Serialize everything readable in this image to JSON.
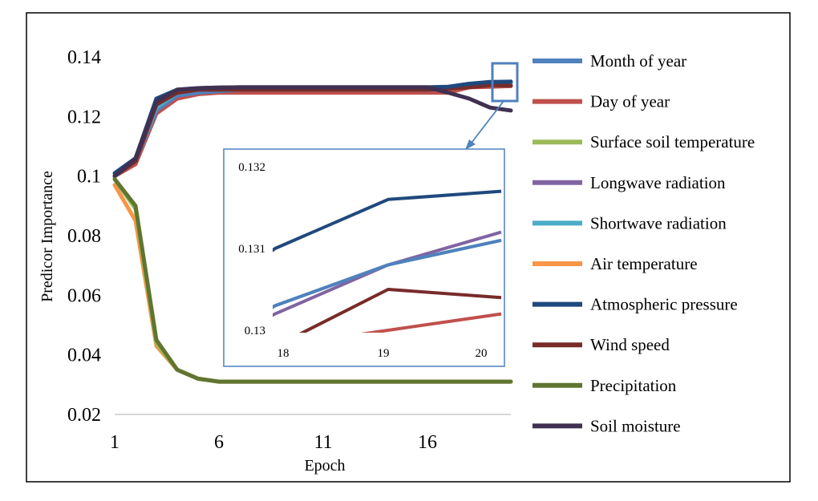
{
  "chart_data": {
    "type": "line",
    "xlabel": "Epoch",
    "ylabel": "Predicor Importance",
    "xlim": [
      1,
      20
    ],
    "ylim": [
      0.02,
      0.14
    ],
    "x_ticks": [
      1,
      6,
      11,
      16
    ],
    "y_ticks": [
      0.02,
      0.04,
      0.06,
      0.08,
      0.1,
      0.12,
      0.14
    ],
    "y_tick_labels": [
      "0.02",
      "0.04",
      "0.06",
      "0.08",
      "0.1",
      "0.12",
      "0.14"
    ],
    "grid": false,
    "legend_position": "right",
    "x": [
      1,
      2,
      3,
      4,
      5,
      6,
      7,
      8,
      9,
      10,
      11,
      12,
      13,
      14,
      15,
      16,
      17,
      18,
      19,
      20
    ],
    "series": [
      {
        "name": "Month of year",
        "color": "#4F81BD",
        "values": [
          0.1,
          0.105,
          0.122,
          0.127,
          0.128,
          0.1285,
          0.129,
          0.129,
          0.129,
          0.129,
          0.129,
          0.129,
          0.129,
          0.129,
          0.129,
          0.129,
          0.1295,
          0.1303,
          0.1308,
          0.1311
        ]
      },
      {
        "name": "Day of year",
        "color": "#C0504D",
        "values": [
          0.1,
          0.104,
          0.121,
          0.126,
          0.1275,
          0.128,
          0.128,
          0.128,
          0.128,
          0.128,
          0.128,
          0.128,
          0.128,
          0.128,
          0.128,
          0.128,
          0.128,
          0.1298,
          0.13,
          0.1302
        ]
      },
      {
        "name": "Surface soil temperature",
        "color": "#9BBB59",
        "values": [
          0.099,
          0.089,
          0.044,
          0.035,
          0.032,
          0.031,
          0.031,
          0.031,
          0.031,
          0.031,
          0.031,
          0.031,
          0.031,
          0.031,
          0.031,
          0.031,
          0.031,
          0.031,
          0.031,
          0.031
        ]
      },
      {
        "name": "Longwave radiation",
        "color": "#8064A2",
        "values": [
          0.1,
          0.105,
          0.123,
          0.128,
          0.129,
          0.129,
          0.129,
          0.129,
          0.129,
          0.129,
          0.129,
          0.129,
          0.129,
          0.129,
          0.129,
          0.129,
          0.1295,
          0.1302,
          0.1308,
          0.1312
        ]
      },
      {
        "name": "Shortwave radiation",
        "color": "#4BACC6",
        "values": [
          0.1,
          0.105,
          0.123,
          0.128,
          0.129,
          0.129,
          0.129,
          0.129,
          0.129,
          0.129,
          0.129,
          0.129,
          0.129,
          0.129,
          0.129,
          0.129,
          0.1295,
          0.1303,
          0.1308,
          0.1311
        ]
      },
      {
        "name": "Air temperature",
        "color": "#F79646",
        "values": [
          0.097,
          0.085,
          0.043,
          0.035,
          0.032,
          0.031,
          0.031,
          0.031,
          0.031,
          0.031,
          0.031,
          0.031,
          0.031,
          0.031,
          0.031,
          0.031,
          0.031,
          0.031,
          0.031,
          0.031
        ]
      },
      {
        "name": "Atmospheric pressure",
        "color": "#1F497D",
        "values": [
          0.101,
          0.106,
          0.126,
          0.129,
          0.1295,
          0.1297,
          0.1298,
          0.1298,
          0.1298,
          0.1298,
          0.1298,
          0.1298,
          0.1298,
          0.1298,
          0.1298,
          0.1298,
          0.13,
          0.131,
          0.1316,
          0.1317
        ]
      },
      {
        "name": "Wind speed",
        "color": "#772C2A",
        "values": [
          0.1,
          0.105,
          0.124,
          0.128,
          0.129,
          0.129,
          0.129,
          0.129,
          0.129,
          0.129,
          0.129,
          0.129,
          0.129,
          0.129,
          0.129,
          0.129,
          0.1294,
          0.1298,
          0.1305,
          0.1304
        ]
      },
      {
        "name": "Precipitation",
        "color": "#5F7530",
        "values": [
          0.099,
          0.09,
          0.045,
          0.035,
          0.032,
          0.031,
          0.031,
          0.031,
          0.031,
          0.031,
          0.031,
          0.031,
          0.031,
          0.031,
          0.031,
          0.031,
          0.031,
          0.031,
          0.031,
          0.031
        ]
      },
      {
        "name": "Soil moisture",
        "color": "#403152",
        "values": [
          0.1,
          0.106,
          0.125,
          0.129,
          0.1295,
          0.1297,
          0.1298,
          0.1298,
          0.1298,
          0.1298,
          0.1298,
          0.1298,
          0.1298,
          0.1298,
          0.1298,
          0.1298,
          0.128,
          0.126,
          0.123,
          0.122
        ]
      }
    ],
    "inset": {
      "xlim": [
        18,
        20
      ],
      "ylim": [
        0.13,
        0.132
      ],
      "x_ticks": [
        18,
        19,
        20
      ],
      "y_ticks": [
        0.13,
        0.131,
        0.132
      ],
      "y_tick_labels": [
        "0.13",
        "0.131",
        "0.132"
      ]
    }
  }
}
